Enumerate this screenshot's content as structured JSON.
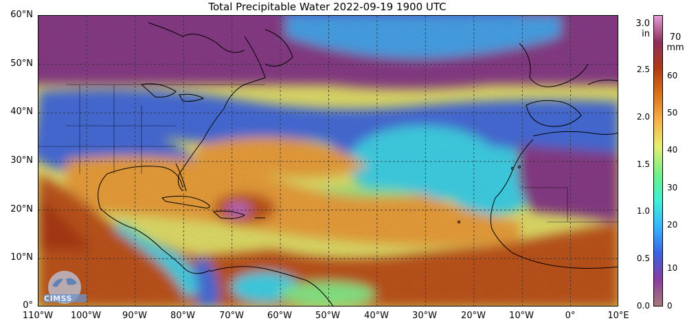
{
  "title": "Total Precipitable Water  2022-09-19 1900 UTC",
  "lat_labels": [
    "60°N",
    "50°N",
    "40°N",
    "30°N",
    "20°N",
    "10°N",
    "0°"
  ],
  "lon_labels": [
    "110°W",
    "100°W",
    "90°W",
    "80°W",
    "70°W",
    "60°W",
    "50°W",
    "40°W",
    "30°W",
    "20°W",
    "10°W",
    "0°",
    "10°E"
  ],
  "colorbar": {
    "unit_left": [
      "3.0",
      "in"
    ],
    "unit_right": [
      "70",
      "mm"
    ],
    "inch_ticks": [
      "2.5",
      "2.0",
      "1.5",
      "1.0",
      "0.5",
      "0.0"
    ],
    "mm_ticks": [
      "60",
      "50",
      "40",
      "30",
      "20",
      "10",
      "0"
    ],
    "colors": [
      "#a87a7a",
      "#8a3da0",
      "#3a63e0",
      "#37b3ff",
      "#3cf0d8",
      "#6ef08a",
      "#e7ee70",
      "#f7b046",
      "#d9721a",
      "#b03a12",
      "#8d2f5b",
      "#e59bd8"
    ]
  },
  "logo": {
    "text": "CIMSS"
  },
  "palette": {
    "dry": "#8c3d8a",
    "blue": "#4a6fe0",
    "cyan": "#43d8ee",
    "green": "#8cf08a",
    "yellow": "#e9e66c",
    "orange": "#f2a43c",
    "brown": "#c4561c",
    "magenta": "#c46fd0",
    "coast": "#000000",
    "grid": "#333333"
  }
}
